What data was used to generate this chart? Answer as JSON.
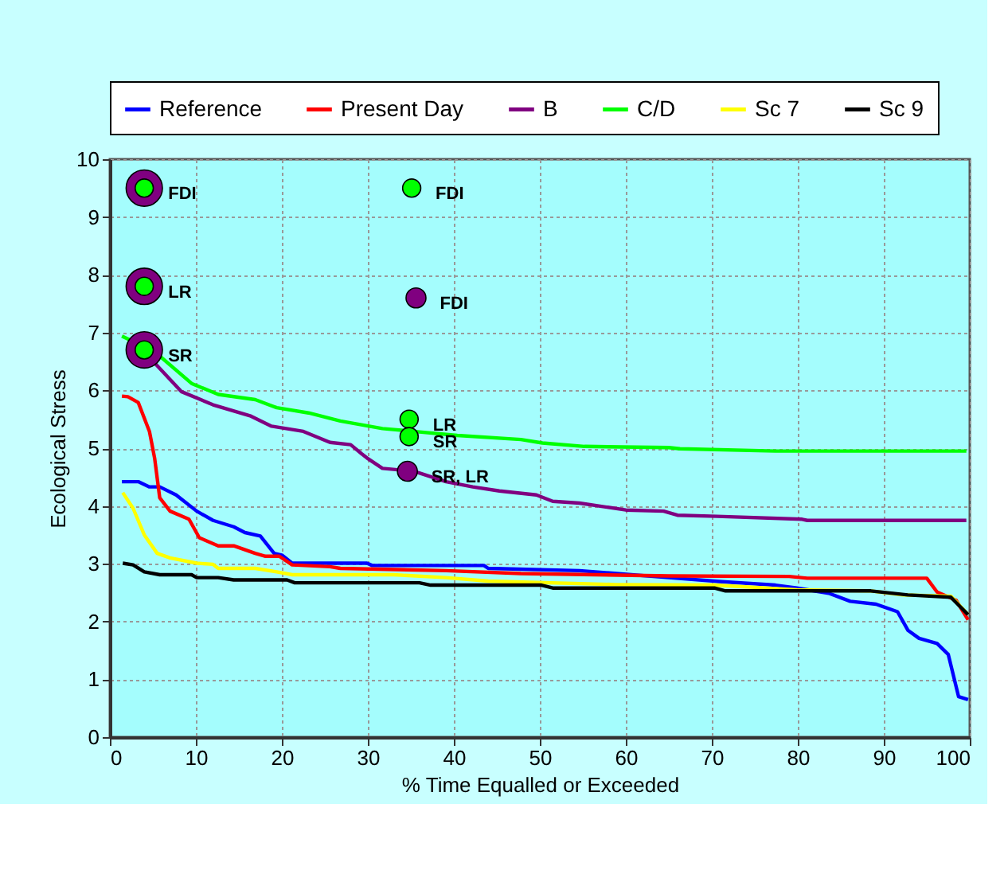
{
  "chart_data": {
    "type": "line",
    "xlabel": "% Time Equalled or Exceeded",
    "ylabel": "Ecological Stress",
    "xlim": [
      0,
      100
    ],
    "ylim": [
      0,
      10
    ],
    "xticks": [
      0,
      10,
      20,
      30,
      40,
      50,
      60,
      70,
      80,
      90,
      100
    ],
    "yticks": [
      0,
      1,
      2,
      3,
      4,
      5,
      6,
      7,
      8,
      9,
      10
    ],
    "grid": true,
    "legend": "top",
    "line_style": "solid",
    "series": [
      {
        "name": "Reference",
        "color": "#0000ff",
        "x": [
          1.4,
          3.3,
          4.6,
          5.8,
          7.7,
          10.1,
          12,
          14.4,
          15.7,
          17.5,
          19.1,
          20,
          21.2,
          29.9,
          30.5,
          43.5,
          44,
          54.6,
          65,
          71.2,
          77.4,
          79.9,
          83.6,
          86.1,
          89.1,
          91.6,
          92.8,
          94.1,
          96.2,
          97.5,
          98.7,
          99.8
        ],
        "values": [
          4.42,
          4.42,
          4.33,
          4.33,
          4.19,
          3.91,
          3.75,
          3.64,
          3.54,
          3.48,
          3.18,
          3.15,
          3.01,
          3.01,
          2.97,
          2.97,
          2.92,
          2.88,
          2.76,
          2.69,
          2.63,
          2.58,
          2.49,
          2.35,
          2.3,
          2.17,
          1.85,
          1.71,
          1.62,
          1.43,
          0.7,
          0.65
        ]
      },
      {
        "name": "Present Day",
        "color": "#ff0000",
        "x": [
          1.4,
          2.1,
          3.3,
          4.6,
          5.2,
          5.8,
          7,
          9.2,
          10.4,
          12.6,
          14.4,
          16.9,
          18.1,
          19.7,
          21.2,
          25.6,
          26.8,
          39.1,
          47.8,
          65,
          79,
          81.1,
          95,
          96.2,
          98.4,
          99.8
        ],
        "values": [
          5.9,
          5.89,
          5.79,
          5.29,
          4.83,
          4.14,
          3.91,
          3.77,
          3.45,
          3.31,
          3.31,
          3.18,
          3.13,
          3.13,
          2.98,
          2.95,
          2.92,
          2.88,
          2.83,
          2.79,
          2.78,
          2.75,
          2.75,
          2.51,
          2.37,
          2.03
        ]
      },
      {
        "name": "B",
        "color": "#800080",
        "x": [
          4.6,
          8.3,
          12,
          16.3,
          18.8,
          22.5,
          25.6,
          28,
          29.3,
          29.9,
          31.7,
          35.4,
          39.1,
          42.2,
          45.3,
          49.6,
          51.5,
          54.6,
          60,
          64.4,
          66,
          70.6,
          80.5,
          81.1,
          99.6
        ],
        "values": [
          6.57,
          5.98,
          5.75,
          5.56,
          5.38,
          5.29,
          5.1,
          5.06,
          4.9,
          4.83,
          4.65,
          4.6,
          4.42,
          4.33,
          4.26,
          4.19,
          4.08,
          4.05,
          3.93,
          3.91,
          3.84,
          3.82,
          3.77,
          3.75,
          3.75
        ]
      },
      {
        "name": "C/D",
        "color": "#00ff00",
        "x": [
          1.4,
          5.2,
          9.5,
          12.6,
          16.9,
          19.4,
          23.1,
          26.8,
          31.7,
          40.4,
          47.8,
          50.3,
          55.2,
          65,
          66.3,
          77.4,
          99.6
        ],
        "values": [
          6.94,
          6.67,
          6.12,
          5.93,
          5.84,
          5.7,
          5.61,
          5.47,
          5.34,
          5.22,
          5.15,
          5.09,
          5.03,
          5.01,
          4.99,
          4.95,
          4.95
        ]
      },
      {
        "name": "Sc 7",
        "color": "#ffff00",
        "x": [
          1.5,
          2.7,
          4,
          5.5,
          7,
          10.1,
          12,
          12.6,
          16.9,
          19.4,
          21.2,
          33,
          39.1,
          44,
          58.8,
          70.3,
          79.9,
          88.5,
          92.2,
          97.8,
          99.8
        ],
        "values": [
          4.23,
          3.96,
          3.5,
          3.18,
          3.1,
          3.01,
          2.99,
          2.92,
          2.92,
          2.86,
          2.81,
          2.81,
          2.76,
          2.7,
          2.64,
          2.63,
          2.55,
          2.53,
          2.46,
          2.44,
          2.12
        ]
      },
      {
        "name": "Sc 9",
        "color": "#000000",
        "x": [
          1.5,
          2.7,
          4,
          5.8,
          9.5,
          10.1,
          12.6,
          14.4,
          20.6,
          21.5,
          36,
          37.3,
          50.2,
          51.5,
          70.3,
          71.6,
          88.5,
          92.8,
          97.8,
          99.8
        ],
        "values": [
          3.01,
          2.98,
          2.86,
          2.81,
          2.81,
          2.76,
          2.76,
          2.72,
          2.72,
          2.67,
          2.67,
          2.63,
          2.63,
          2.58,
          2.58,
          2.53,
          2.53,
          2.46,
          2.42,
          2.12
        ]
      },
      {
        "type": "bubble",
        "color": "#800080",
        "x": [
          4,
          4,
          4,
          35.6,
          34.6
        ],
        "values": [
          9.5,
          7.8,
          6.7,
          7.6,
          4.6
        ],
        "sizes": [
          1,
          1,
          1,
          0.3,
          0.3
        ]
      },
      {
        "type": "scatter",
        "marker": "circle",
        "color": "#00ff00",
        "x": [
          4,
          4,
          4,
          35.1,
          34.8,
          34.8
        ],
        "values": [
          9.5,
          7.8,
          6.7,
          9.5,
          5.5,
          5.2
        ]
      }
    ],
    "annotations": [
      {
        "text": "FDI",
        "x": 4,
        "y": 9.5
      },
      {
        "text": "LR",
        "x": 4,
        "y": 7.8
      },
      {
        "text": "SR",
        "x": 4,
        "y": 6.7
      },
      {
        "text": "FDI",
        "x": 35.1,
        "y": 9.5
      },
      {
        "text": "FDI",
        "x": 35.6,
        "y": 7.6
      },
      {
        "text": "LR",
        "x": 34.8,
        "y": 5.5
      },
      {
        "text": "SR",
        "x": 34.8,
        "y": 5.2
      },
      {
        "text": "SR, LR",
        "x": 34.6,
        "y": 4.6
      }
    ]
  }
}
